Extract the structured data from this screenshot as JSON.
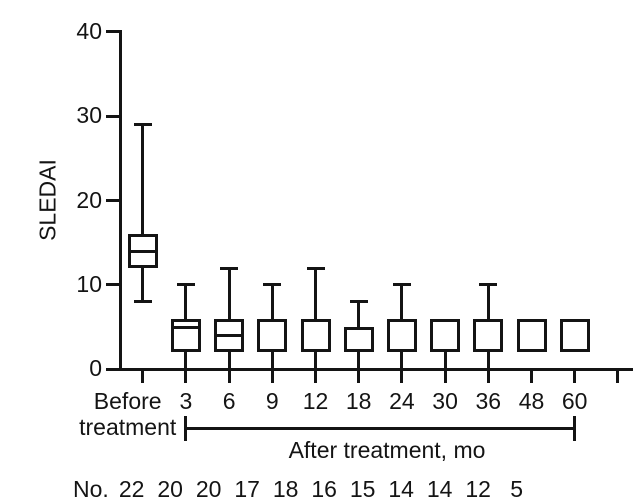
{
  "figure": {
    "background": "#ffffff",
    "line_color": "#141414"
  },
  "chart_data": {
    "type": "boxplot",
    "title": "",
    "ylabel": "SLEDAI",
    "xlabel": "",
    "ylim": [
      0,
      40
    ],
    "yticks": [
      0,
      10,
      20,
      30,
      40
    ],
    "grid": false,
    "boxes": [
      {
        "label": "Before treatment",
        "n": 22,
        "low": 8,
        "q1": 12,
        "median": 14,
        "q3": 16,
        "high": 29
      },
      {
        "label": "3",
        "n": 20,
        "low": 0,
        "q1": 2,
        "median": 5,
        "q3": 6,
        "high": 10
      },
      {
        "label": "6",
        "n": 20,
        "low": 0,
        "q1": 2,
        "median": 4,
        "q3": 6,
        "high": 12
      },
      {
        "label": "9",
        "n": 17,
        "low": 0,
        "q1": 2,
        "median": null,
        "q3": 6,
        "high": 10
      },
      {
        "label": "12",
        "n": 18,
        "low": 0,
        "q1": 2,
        "median": null,
        "q3": 6,
        "high": 12
      },
      {
        "label": "18",
        "n": 16,
        "low": 0,
        "q1": 2,
        "median": null,
        "q3": 5,
        "high": 8
      },
      {
        "label": "24",
        "n": 15,
        "low": 0,
        "q1": 2,
        "median": null,
        "q3": 6,
        "high": 10
      },
      {
        "label": "30",
        "n": 14,
        "low": 0,
        "q1": 2,
        "median": null,
        "q3": 6,
        "high": null
      },
      {
        "label": "36",
        "n": 14,
        "low": 0,
        "q1": 2,
        "median": null,
        "q3": 6,
        "high": 10
      },
      {
        "label": "48",
        "n": 12,
        "low": null,
        "q1": 2,
        "median": null,
        "q3": 6,
        "high": null
      },
      {
        "label": "60",
        "n": 5,
        "low": null,
        "q1": 2,
        "median": null,
        "q3": 6,
        "high": null
      }
    ],
    "after_bracket": {
      "label": "After treatment, mo",
      "from_category": "3",
      "to_category": "60"
    },
    "counts_row": {
      "prefix": "No.",
      "values": [
        22,
        20,
        20,
        17,
        18,
        16,
        15,
        14,
        14,
        12,
        5
      ]
    }
  }
}
